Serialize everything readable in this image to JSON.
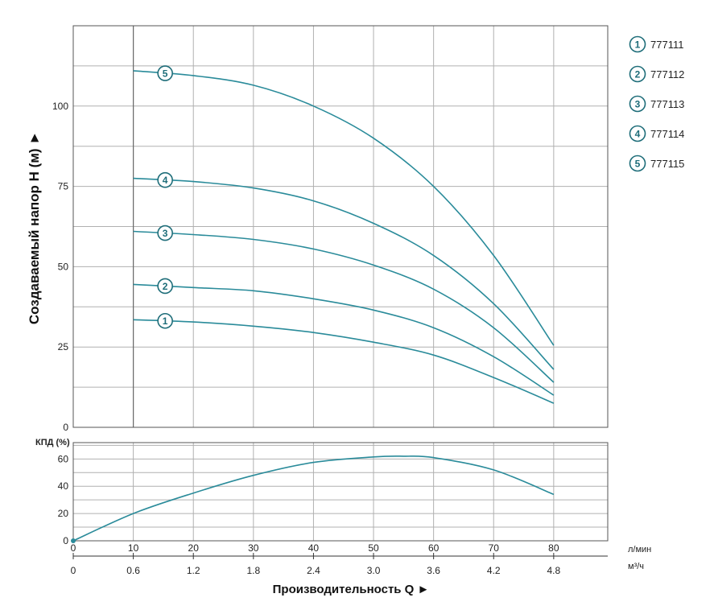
{
  "chart_data": [
    {
      "type": "line",
      "ylabel": "Создаваемый напор H (м) ►",
      "x_unit": "л/мин",
      "x": [
        10,
        20,
        30,
        40,
        50,
        60,
        70,
        80
      ],
      "xlim": [
        0,
        89
      ],
      "ylim": [
        0,
        125
      ],
      "yticks": [
        0,
        25,
        50,
        75,
        100
      ],
      "grid": true,
      "legend_position": "right",
      "series": [
        {
          "name": "777111",
          "marker": "1",
          "values": [
            33.5,
            32.8,
            31.5,
            29.5,
            26.5,
            22.5,
            15.5,
            7.5
          ]
        },
        {
          "name": "777112",
          "marker": "2",
          "values": [
            44.5,
            43.5,
            42.5,
            40,
            36.5,
            31,
            22,
            10
          ]
        },
        {
          "name": "777113",
          "marker": "3",
          "values": [
            61,
            60,
            58.5,
            55.5,
            50.5,
            43,
            31,
            14
          ]
        },
        {
          "name": "777114",
          "marker": "4",
          "values": [
            77.5,
            76.5,
            74.5,
            70.5,
            63.5,
            53.5,
            38.5,
            18
          ]
        },
        {
          "name": "777115",
          "marker": "5",
          "values": [
            111,
            109.5,
            106.5,
            100,
            90,
            75,
            53.5,
            25.5
          ]
        }
      ]
    },
    {
      "type": "line",
      "ylabel": "КПД (%)",
      "xlabel": "Производительность Q ►",
      "xlim": [
        0,
        89
      ],
      "ylim": [
        0,
        72
      ],
      "yticks": [
        0,
        20,
        40,
        60
      ],
      "grid": true,
      "x_ticks_lmin": [
        "0",
        "10",
        "20",
        "30",
        "40",
        "50",
        "60",
        "70",
        "80"
      ],
      "x_ticks_m3h": [
        "0",
        "0.6",
        "1.2",
        "1.8",
        "2.4",
        "3.0",
        "3.6",
        "4.2",
        "4.8"
      ],
      "x_unit_1": "л/мин",
      "x_unit_2": "м³/ч",
      "series": [
        {
          "x": [
            0,
            10,
            20,
            30,
            40,
            50,
            55,
            60,
            70,
            80
          ],
          "values": [
            0,
            20,
            35,
            48,
            57.5,
            61.5,
            62,
            61,
            52,
            34
          ]
        }
      ]
    }
  ],
  "colors": {
    "curve": "#2a8b9a",
    "grid": "#b0b0b0",
    "frame": "#555555",
    "marker_border": "#1e6d79"
  }
}
